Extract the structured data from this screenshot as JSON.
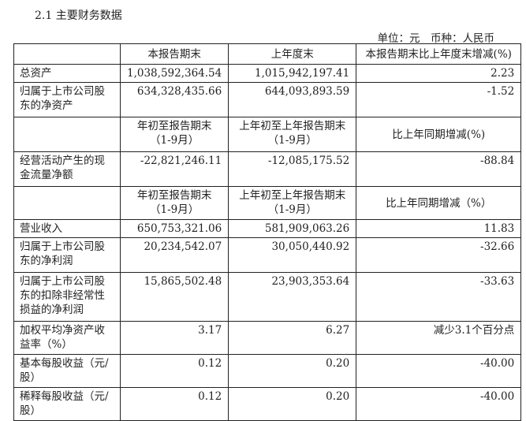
{
  "title": "2.1 主要财务数据",
  "unit": "单位：元　币种：人民币",
  "header1": [
    "",
    "本报告期末",
    "上年度末",
    "本报告期末比上年度末增减(%)"
  ],
  "block1": [
    [
      "总资产",
      "1,038,592,364.54",
      "1,015,942,197.41",
      "2.23"
    ],
    [
      "归属于上市公司股东的净资产",
      "634,328,435.66",
      "644,093,893.59",
      "-1.52"
    ]
  ],
  "header2": [
    "",
    "年初至报告期末（1-9月）",
    "上年初至上年报告期末（1-9月）",
    "比上年同期增减(%)"
  ],
  "block2": [
    [
      "经营活动产生的现金流量净额",
      "-22,821,246.11",
      "-12,085,175.52",
      "-88.84"
    ]
  ],
  "header3": [
    "",
    "年初至报告期末（1-9月）",
    "上年初至上年报告期末（1-9月）",
    "比上年同期增减（%）"
  ],
  "block3": [
    [
      "营业收入",
      "650,753,321.06",
      "581,909,063.26",
      "11.83"
    ],
    [
      "归属于上市公司股东的净利润",
      "20,234,542.07",
      "30,050,440.92",
      "-32.66"
    ],
    [
      "归属于上市公司股东的扣除非经常性损益的净利润",
      "15,865,502.48",
      "23,903,353.64",
      "-33.63"
    ],
    [
      "加权平均净资产收益率（%）",
      "3.17",
      "6.27",
      "减少3.1个百分点"
    ],
    [
      "基本每股收益（元/股）",
      "0.12",
      "0.20",
      "-40.00"
    ],
    [
      "稀释每股收益（元/股）",
      "0.12",
      "0.20",
      "-40.00"
    ]
  ]
}
